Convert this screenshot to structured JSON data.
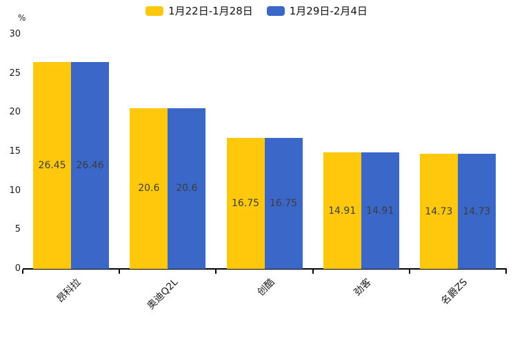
{
  "chart_data": {
    "type": "bar",
    "title": "",
    "xlabel": "",
    "ylabel": "%",
    "ylim": [
      0,
      30
    ],
    "yticks": [
      0,
      5,
      10,
      15,
      20,
      25,
      30
    ],
    "grid": false,
    "legend_position": "top",
    "value_label_color": "#3d3d3d",
    "categories": [
      "昂科拉",
      "奥迪Q2L",
      "创酷",
      "劲客",
      "名爵ZS"
    ],
    "series": [
      {
        "name": "1月22日-1月28日",
        "color": "#FFC80D",
        "values": [
          26.45,
          20.6,
          16.75,
          14.91,
          14.73
        ]
      },
      {
        "name": "1月29日-2月4日",
        "color": "#3A67C8",
        "values": [
          26.46,
          20.6,
          16.75,
          14.91,
          14.73
        ]
      }
    ]
  }
}
